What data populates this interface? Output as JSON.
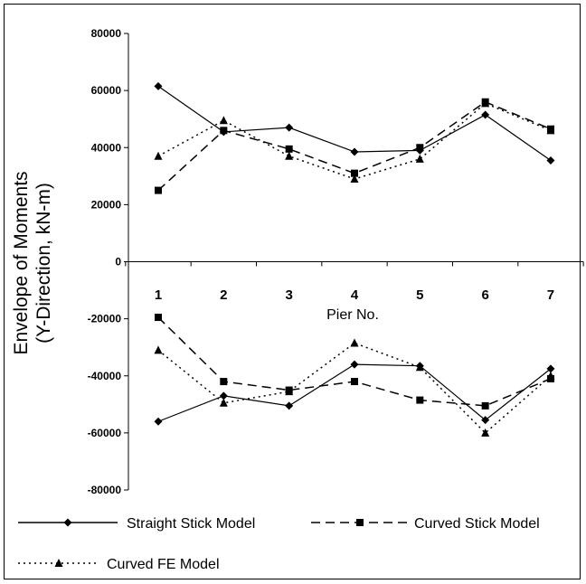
{
  "chart_data": {
    "type": "line",
    "title": "",
    "ylabel": "Envelope of Moments",
    "ylabel_line2": "(Y-Direction, kN-m)",
    "xlabel": "Pier No.",
    "categories": [
      "1",
      "2",
      "3",
      "4",
      "5",
      "6",
      "7"
    ],
    "ylim": [
      -80000,
      80000
    ],
    "yticks": [
      80000,
      60000,
      40000,
      20000,
      0,
      -20000,
      -40000,
      -60000,
      -80000
    ],
    "ytick_labels": [
      "80000",
      "60000",
      "40000",
      "20000",
      "0",
      "-20000",
      "-40000",
      "-60000",
      "-80000"
    ],
    "grid": false,
    "legend_position": "bottom",
    "series": [
      {
        "name": "Straight Stick Model",
        "marker": "diamond",
        "dash": "solid",
        "positive": [
          61500,
          45500,
          47000,
          38500,
          39000,
          51500,
          35500
        ],
        "negative": [
          -56000,
          -47000,
          -50500,
          -36000,
          -36500,
          -55500,
          -37500
        ]
      },
      {
        "name": "Curved Stick Model",
        "marker": "square",
        "dash": "dashed",
        "positive": [
          25000,
          46000,
          39500,
          31000,
          40000,
          56000,
          46500
        ],
        "negative": [
          -19500,
          -42000,
          -45000,
          -42000,
          -48500,
          -50500,
          -41000
        ]
      },
      {
        "name": "Curved FE Model",
        "marker": "triangle",
        "dash": "dotted",
        "positive": [
          37000,
          49500,
          37000,
          29000,
          36000,
          55500,
          46000
        ],
        "negative": [
          -31000,
          -49500,
          -45500,
          -28500,
          -37000,
          -60000,
          -40000
        ]
      }
    ]
  }
}
